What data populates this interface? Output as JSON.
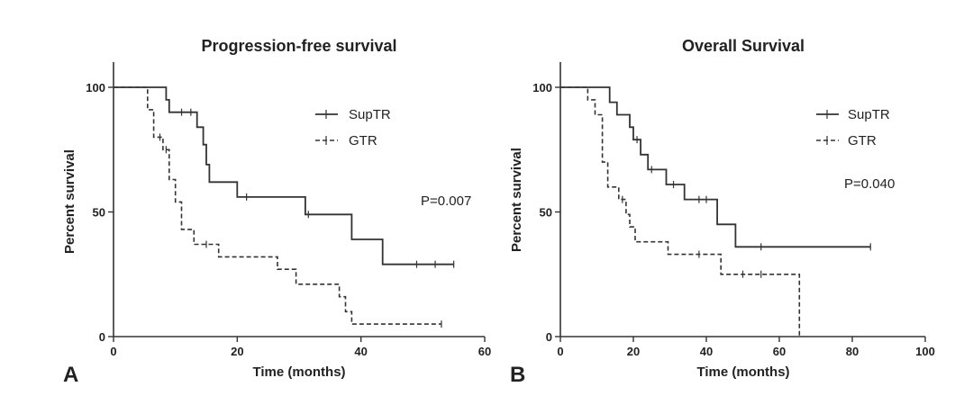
{
  "chart_data": [
    {
      "type": "line",
      "panel_letter": "A",
      "title": "Progression-free survival",
      "xlabel": "Time (months)",
      "ylabel": "Percent survival",
      "xlim": [
        0,
        60
      ],
      "ylim": [
        0,
        100
      ],
      "x_ticks": [
        0,
        20,
        40,
        60
      ],
      "y_ticks": [
        0,
        50,
        100
      ],
      "p_value": "P=0.007",
      "series": [
        {
          "name": "SupTR",
          "style": "solid",
          "steps": [
            [
              0,
              100
            ],
            [
              8.5,
              100
            ],
            [
              8.5,
              95
            ],
            [
              9,
              95
            ],
            [
              9,
              90
            ],
            [
              13.5,
              90
            ],
            [
              13.5,
              84
            ],
            [
              14.5,
              84
            ],
            [
              14.5,
              77
            ],
            [
              15,
              77
            ],
            [
              15,
              69
            ],
            [
              15.5,
              69
            ],
            [
              15.5,
              62
            ],
            [
              20,
              62
            ],
            [
              20,
              56
            ],
            [
              31,
              56
            ],
            [
              31,
              49
            ],
            [
              38.5,
              49
            ],
            [
              38.5,
              39
            ],
            [
              43.5,
              39
            ],
            [
              43.5,
              29
            ],
            [
              55,
              29
            ]
          ],
          "censored": [
            [
              11,
              90
            ],
            [
              12.5,
              90
            ],
            [
              21.5,
              56
            ],
            [
              31.5,
              49
            ],
            [
              49,
              29
            ],
            [
              52,
              29
            ],
            [
              55,
              29
            ]
          ]
        },
        {
          "name": "GTR",
          "style": "dashed",
          "steps": [
            [
              0,
              100
            ],
            [
              5.5,
              100
            ],
            [
              5.5,
              91
            ],
            [
              6.5,
              91
            ],
            [
              6.5,
              80
            ],
            [
              8,
              80
            ],
            [
              8,
              75
            ],
            [
              9,
              75
            ],
            [
              9,
              63
            ],
            [
              10,
              63
            ],
            [
              10,
              54
            ],
            [
              11,
              54
            ],
            [
              11,
              43
            ],
            [
              13,
              43
            ],
            [
              13,
              37
            ],
            [
              17,
              37
            ],
            [
              17,
              32
            ],
            [
              26.5,
              32
            ],
            [
              26.5,
              27
            ],
            [
              29.5,
              27
            ],
            [
              29.5,
              21
            ],
            [
              36.5,
              21
            ],
            [
              36.5,
              16
            ],
            [
              37.5,
              16
            ],
            [
              37.5,
              10
            ],
            [
              38.5,
              10
            ],
            [
              38.5,
              5
            ],
            [
              53,
              5
            ]
          ],
          "censored": [
            [
              7.5,
              80
            ],
            [
              8.5,
              75
            ],
            [
              15,
              37
            ],
            [
              53,
              5
            ]
          ]
        }
      ]
    },
    {
      "type": "line",
      "panel_letter": "B",
      "title": "Overall Survival",
      "xlabel": "Time (months)",
      "ylabel": "Percent survival",
      "xlim": [
        0,
        100
      ],
      "ylim": [
        0,
        100
      ],
      "x_ticks": [
        0,
        20,
        40,
        60,
        80,
        100
      ],
      "y_ticks": [
        0,
        50,
        100
      ],
      "p_value": "P=0.040",
      "series": [
        {
          "name": "SupTR",
          "style": "solid",
          "steps": [
            [
              0,
              100
            ],
            [
              13.5,
              100
            ],
            [
              13.5,
              94
            ],
            [
              15.5,
              94
            ],
            [
              15.5,
              89
            ],
            [
              19,
              89
            ],
            [
              19,
              84
            ],
            [
              20,
              84
            ],
            [
              20,
              79
            ],
            [
              22,
              79
            ],
            [
              22,
              73
            ],
            [
              24,
              73
            ],
            [
              24,
              67
            ],
            [
              29,
              67
            ],
            [
              29,
              61
            ],
            [
              34,
              61
            ],
            [
              34,
              55
            ],
            [
              43,
              55
            ],
            [
              43,
              45
            ],
            [
              48,
              45
            ],
            [
              48,
              36
            ],
            [
              85,
              36
            ]
          ],
          "censored": [
            [
              21,
              79
            ],
            [
              25,
              67
            ],
            [
              31,
              61
            ],
            [
              38,
              55
            ],
            [
              40,
              55
            ],
            [
              55,
              36
            ],
            [
              85,
              36
            ]
          ]
        },
        {
          "name": "GTR",
          "style": "dashed",
          "steps": [
            [
              0,
              100
            ],
            [
              7.5,
              100
            ],
            [
              7.5,
              95
            ],
            [
              9.5,
              95
            ],
            [
              9.5,
              89
            ],
            [
              11.5,
              89
            ],
            [
              11.5,
              70
            ],
            [
              13,
              70
            ],
            [
              13,
              60
            ],
            [
              16,
              60
            ],
            [
              16,
              55
            ],
            [
              18,
              55
            ],
            [
              18,
              49
            ],
            [
              19,
              49
            ],
            [
              19,
              44
            ],
            [
              20.5,
              44
            ],
            [
              20.5,
              38
            ],
            [
              29.5,
              38
            ],
            [
              29.5,
              33
            ],
            [
              44,
              33
            ],
            [
              44,
              25
            ],
            [
              65.5,
              25
            ],
            [
              65.5,
              0
            ]
          ],
          "censored": [
            [
              17,
              55
            ],
            [
              38,
              33
            ],
            [
              50,
              25
            ],
            [
              55,
              25
            ]
          ]
        }
      ]
    }
  ]
}
